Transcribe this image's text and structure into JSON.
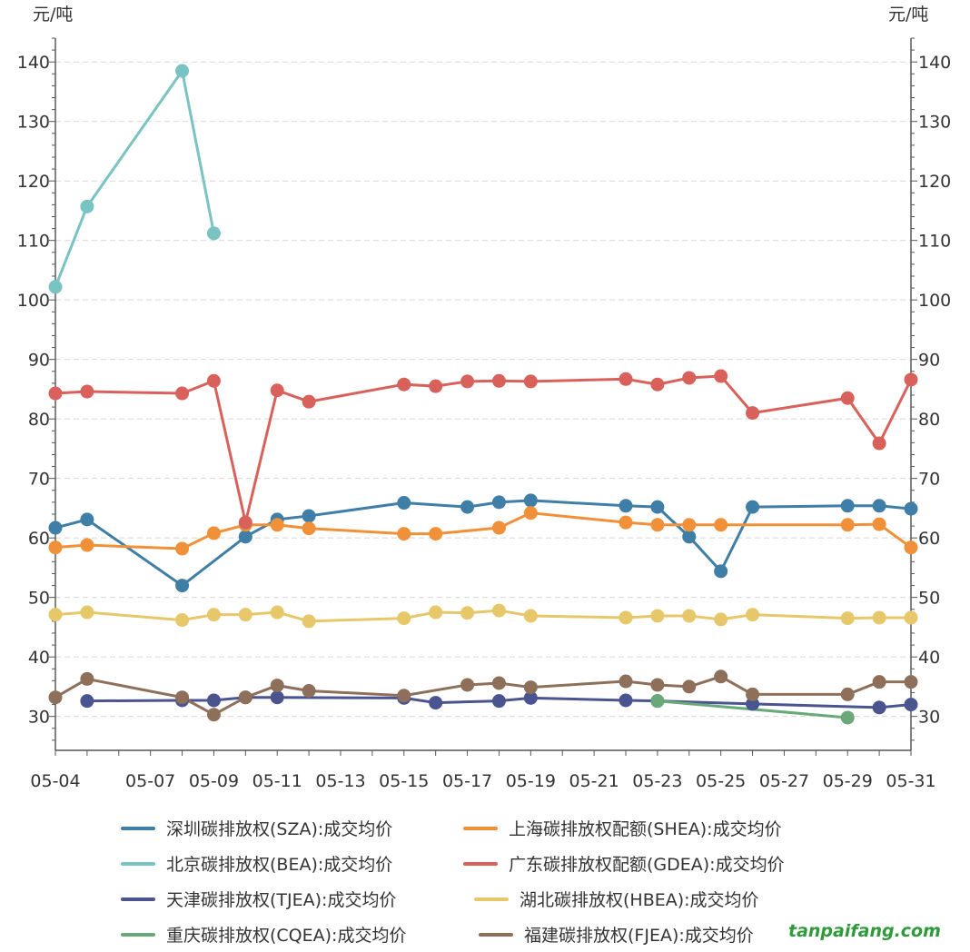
{
  "chart_data": {
    "type": "line",
    "unit_left": "元/吨",
    "unit_right": "元/吨",
    "ylim": [
      24.3,
      144
    ],
    "yticks": [
      30,
      40,
      50,
      60,
      70,
      80,
      90,
      100,
      110,
      120,
      130,
      140
    ],
    "grid": true,
    "legend_position": "bottom",
    "xticks": [
      "05-04",
      "05-07",
      "05-09",
      "05-11",
      "05-13",
      "05-15",
      "05-17",
      "05-19",
      "05-21",
      "05-23",
      "05-25",
      "05-27",
      "05-29",
      "05-31"
    ],
    "series": [
      {
        "name": "深圳碳排放权(SZA):成交均价",
        "color": "#3f7ea6",
        "points": [
          [
            "05-04",
            61.7
          ],
          [
            "05-05",
            63.1
          ],
          [
            "05-08",
            52.0
          ],
          [
            "05-10",
            60.2
          ],
          [
            "05-11",
            63.1
          ],
          [
            "05-12",
            63.7
          ],
          [
            "05-15",
            65.9
          ],
          [
            "05-17",
            65.2
          ],
          [
            "05-18",
            66.0
          ],
          [
            "05-19",
            66.3
          ],
          [
            "05-22",
            65.4
          ],
          [
            "05-23",
            65.2
          ],
          [
            "05-24",
            60.2
          ],
          [
            "05-25",
            54.4
          ],
          [
            "05-26",
            65.2
          ],
          [
            "05-29",
            65.4
          ],
          [
            "05-30",
            65.4
          ],
          [
            "05-31",
            64.9
          ]
        ]
      },
      {
        "name": "上海碳排放权配额(SHEA):成交均价",
        "color": "#f0913a",
        "points": [
          [
            "05-04",
            58.4
          ],
          [
            "05-05",
            58.8
          ],
          [
            "05-08",
            58.2
          ],
          [
            "05-09",
            60.8
          ],
          [
            "05-10",
            62.2
          ],
          [
            "05-11",
            62.2
          ],
          [
            "05-12",
            61.6
          ],
          [
            "05-15",
            60.7
          ],
          [
            "05-16",
            60.7
          ],
          [
            "05-18",
            61.7
          ],
          [
            "05-19",
            64.2
          ],
          [
            "05-22",
            62.6
          ],
          [
            "05-23",
            62.2
          ],
          [
            "05-24",
            62.2
          ],
          [
            "05-25",
            62.2
          ],
          [
            "05-29",
            62.2
          ],
          [
            "05-30",
            62.3
          ],
          [
            "05-31",
            58.4
          ]
        ]
      },
      {
        "name": "北京碳排放权(BEA):成交均价",
        "color": "#79c3c3",
        "points": [
          [
            "05-04",
            102.2
          ],
          [
            "05-05",
            115.7
          ],
          [
            "05-08",
            138.5
          ],
          [
            "05-09",
            111.2
          ]
        ]
      },
      {
        "name": "广东碳排放权配额(GDEA):成交均价",
        "color": "#d9615b",
        "points": [
          [
            "05-04",
            84.3
          ],
          [
            "05-05",
            84.6
          ],
          [
            "05-08",
            84.3
          ],
          [
            "05-09",
            86.4
          ],
          [
            "05-10",
            62.6
          ],
          [
            "05-11",
            84.8
          ],
          [
            "05-12",
            82.9
          ],
          [
            "05-15",
            85.8
          ],
          [
            "05-16",
            85.5
          ],
          [
            "05-17",
            86.3
          ],
          [
            "05-18",
            86.4
          ],
          [
            "05-19",
            86.3
          ],
          [
            "05-22",
            86.7
          ],
          [
            "05-23",
            85.8
          ],
          [
            "05-24",
            86.9
          ],
          [
            "05-25",
            87.2
          ],
          [
            "05-26",
            81.0
          ],
          [
            "05-29",
            83.5
          ],
          [
            "05-30",
            75.9
          ],
          [
            "05-31",
            86.6
          ]
        ]
      },
      {
        "name": "天津碳排放权(TJEA):成交均价",
        "color": "#4a5590",
        "points": [
          [
            "05-05",
            32.6
          ],
          [
            "05-08",
            32.7
          ],
          [
            "05-09",
            32.7
          ],
          [
            "05-10",
            33.2
          ],
          [
            "05-11",
            33.2
          ],
          [
            "05-15",
            33.1
          ],
          [
            "05-16",
            32.3
          ],
          [
            "05-18",
            32.6
          ],
          [
            "05-19",
            33.1
          ],
          [
            "05-22",
            32.7
          ],
          [
            "05-23",
            32.6
          ],
          [
            "05-26",
            32.1
          ],
          [
            "05-30",
            31.5
          ],
          [
            "05-31",
            32.0
          ]
        ]
      },
      {
        "name": "湖北碳排放权(HBEA):成交均价",
        "color": "#e6c86a",
        "points": [
          [
            "05-04",
            47.1
          ],
          [
            "05-05",
            47.5
          ],
          [
            "05-08",
            46.2
          ],
          [
            "05-09",
            47.1
          ],
          [
            "05-10",
            47.1
          ],
          [
            "05-11",
            47.5
          ],
          [
            "05-12",
            46.0
          ],
          [
            "05-15",
            46.5
          ],
          [
            "05-16",
            47.5
          ],
          [
            "05-17",
            47.4
          ],
          [
            "05-18",
            47.8
          ],
          [
            "05-19",
            46.9
          ],
          [
            "05-22",
            46.6
          ],
          [
            "05-23",
            46.9
          ],
          [
            "05-24",
            46.9
          ],
          [
            "05-25",
            46.3
          ],
          [
            "05-26",
            47.1
          ],
          [
            "05-29",
            46.5
          ],
          [
            "05-30",
            46.6
          ],
          [
            "05-31",
            46.6
          ]
        ]
      },
      {
        "name": "重庆碳排放权(CQEA):成交均价",
        "color": "#6aa87a",
        "points": [
          [
            "05-23",
            32.6
          ],
          [
            "05-29",
            29.8
          ]
        ]
      },
      {
        "name": "福建碳排放权(FJEA):成交均价",
        "color": "#8d6f5a",
        "points": [
          [
            "05-04",
            33.2
          ],
          [
            "05-05",
            36.3
          ],
          [
            "05-08",
            33.2
          ],
          [
            "05-09",
            30.3
          ],
          [
            "05-10",
            33.2
          ],
          [
            "05-11",
            35.2
          ],
          [
            "05-12",
            34.3
          ],
          [
            "05-15",
            33.5
          ],
          [
            "05-17",
            35.3
          ],
          [
            "05-18",
            35.6
          ],
          [
            "05-19",
            34.9
          ],
          [
            "05-22",
            35.9
          ],
          [
            "05-23",
            35.3
          ],
          [
            "05-24",
            35.0
          ],
          [
            "05-25",
            36.7
          ],
          [
            "05-26",
            33.7
          ],
          [
            "05-29",
            33.7
          ],
          [
            "05-30",
            35.8
          ],
          [
            "05-31",
            35.8
          ]
        ]
      }
    ]
  },
  "watermark": "tanpaifang.com"
}
